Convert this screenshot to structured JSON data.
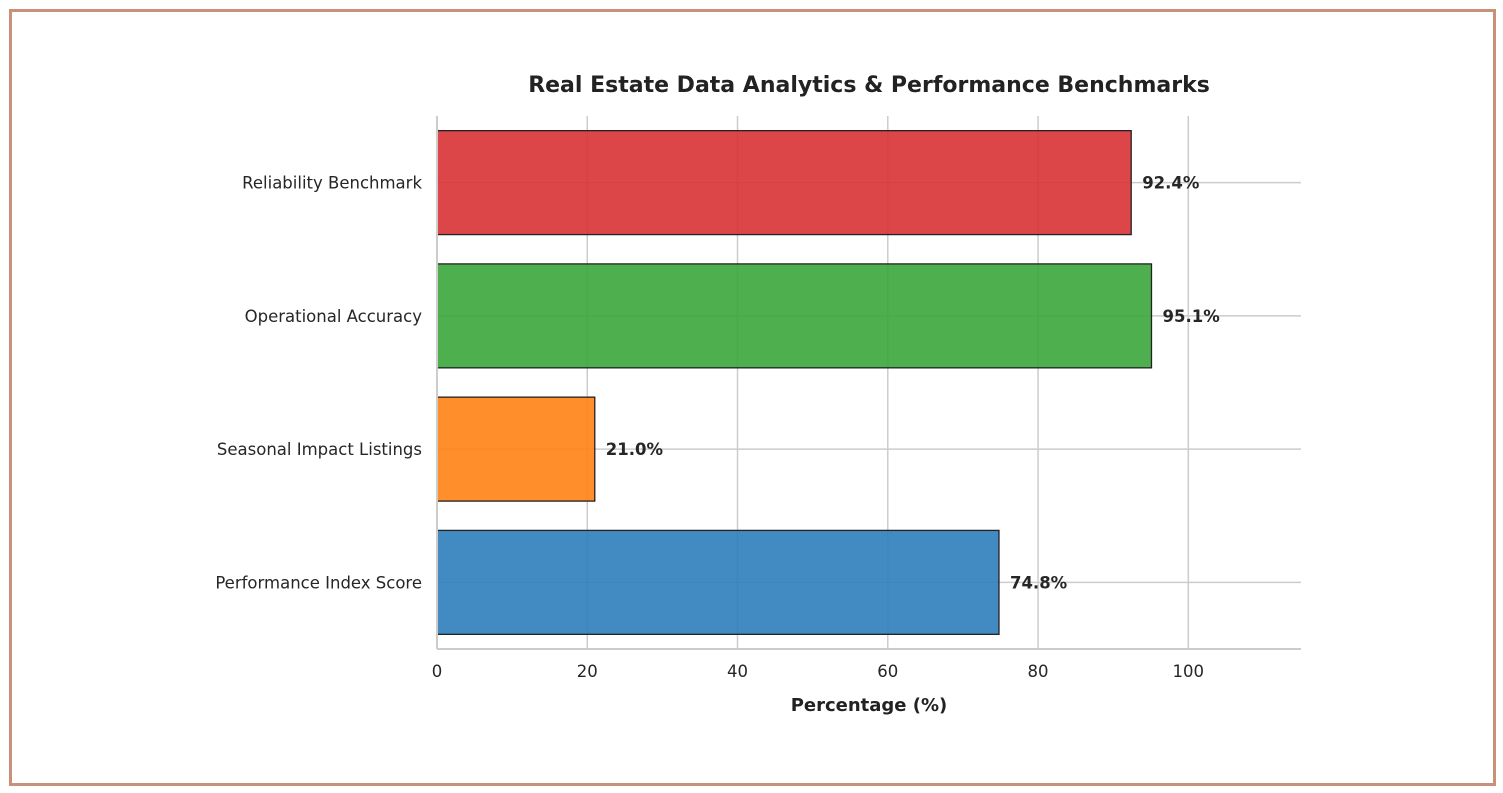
{
  "chart_data": {
    "type": "bar",
    "orientation": "horizontal",
    "title": "Real Estate Data Analytics & Performance Benchmarks",
    "xlabel": "Percentage (%)",
    "ylabel": "",
    "xlim": [
      0,
      115
    ],
    "xticks": [
      0,
      20,
      40,
      60,
      80,
      100
    ],
    "grid": true,
    "categories": [
      "Performance Index Score",
      "Seasonal Impact Listings",
      "Operational Accuracy",
      "Reliability Benchmark"
    ],
    "values": [
      74.8,
      21.0,
      95.1,
      92.4
    ],
    "data_labels": [
      "74.8%",
      "21.0%",
      "95.1%",
      "92.4%"
    ],
    "colors": [
      "#2e7ebb",
      "#ff8214",
      "#3aa63a",
      "#d93234"
    ]
  }
}
